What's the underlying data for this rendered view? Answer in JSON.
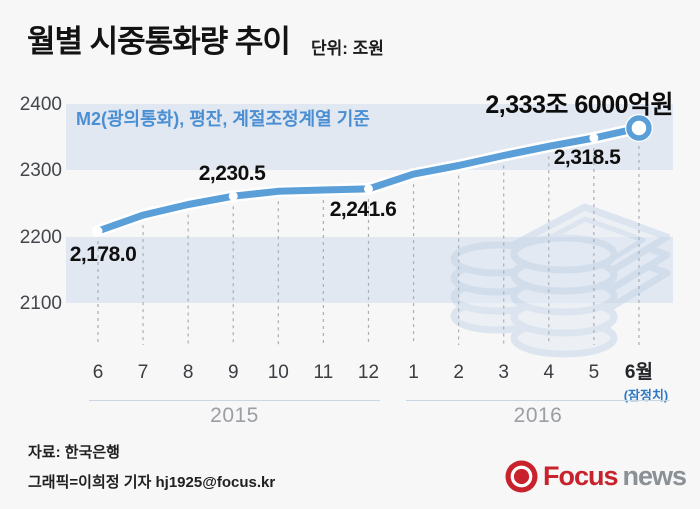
{
  "header": {
    "title": "월별 시중통화량 추이",
    "unit": "단위: 조원"
  },
  "chart_data": {
    "type": "line",
    "title": "월별 시중통화량 추이",
    "unit": "조원",
    "note": "M2(광의통화), 평잔, 계절조정계열 기준",
    "x_labels": [
      "6",
      "7",
      "8",
      "9",
      "10",
      "11",
      "12",
      "1",
      "2",
      "3",
      "4",
      "5",
      "6월"
    ],
    "provisional_note": "(잠정치)",
    "year_groups": [
      {
        "label": "2015"
      },
      {
        "label": "2016"
      }
    ],
    "yticks": [
      "2400",
      "2300",
      "2200",
      "2100"
    ],
    "ylim": [
      2100,
      2400
    ],
    "grid": "horizontal shaded bands + vertical dashed month lines",
    "legend_position": "none",
    "series": [
      {
        "name": "M2",
        "values": [
          2178.0,
          2202,
          2218,
          2230.5,
          2238,
          2240,
          2241.6,
          2264,
          2277,
          2292,
          2306,
          2318.5,
          2333.6
        ]
      }
    ],
    "labeled_points": [
      {
        "index": 0,
        "label": "2,178.0"
      },
      {
        "index": 3,
        "label": "2,230.5"
      },
      {
        "index": 6,
        "label": "2,241.6"
      },
      {
        "index": 11,
        "label": "2,318.5"
      },
      {
        "index": 12,
        "label": "2,333조 6000억원"
      }
    ]
  },
  "footer": {
    "source": "자료: 한국은행",
    "credit": "그래픽=이희정 기자 hj1925@focus.kr"
  },
  "logo": {
    "brand_primary": "Focus",
    "brand_secondary": "news"
  },
  "colors": {
    "line": "#5b9fd8",
    "band": "#e2e8f1",
    "note_blue": "#4a8fd3",
    "provisional_blue": "#2e79c6",
    "logo_red": "#c8232c",
    "logo_gray": "#8a9096"
  }
}
